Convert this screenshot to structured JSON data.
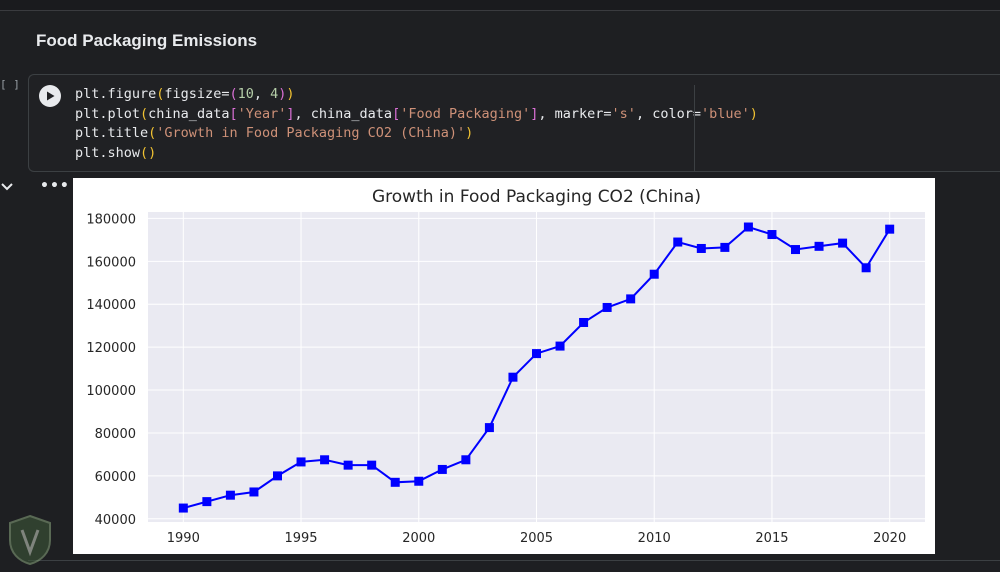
{
  "notebook": {
    "section_title": "Food Packaging Emissions",
    "exec_count": "[ ]",
    "output_menu": "•••"
  },
  "code_lines": [
    [
      {
        "t": "plt.figure",
        "c": "k-fn"
      },
      {
        "t": "(",
        "c": "k-p1"
      },
      {
        "t": "figsize=",
        "c": "k-fn"
      },
      {
        "t": "(",
        "c": "k-p2"
      },
      {
        "t": "10",
        "c": "k-num"
      },
      {
        "t": ", ",
        "c": "k-fn"
      },
      {
        "t": "4",
        "c": "k-num"
      },
      {
        "t": ")",
        "c": "k-p2"
      },
      {
        "t": ")",
        "c": "k-p1"
      }
    ],
    [
      {
        "t": "plt.plot",
        "c": "k-fn"
      },
      {
        "t": "(",
        "c": "k-p1"
      },
      {
        "t": "china_data",
        "c": "k-fn"
      },
      {
        "t": "[",
        "c": "k-p2"
      },
      {
        "t": "'Year'",
        "c": "k-str2"
      },
      {
        "t": "]",
        "c": "k-p2"
      },
      {
        "t": ", china_data",
        "c": "k-fn"
      },
      {
        "t": "[",
        "c": "k-p2"
      },
      {
        "t": "'Food Packaging'",
        "c": "k-str2"
      },
      {
        "t": "]",
        "c": "k-p2"
      },
      {
        "t": ", marker=",
        "c": "k-fn"
      },
      {
        "t": "'s'",
        "c": "k-str2"
      },
      {
        "t": ", color=",
        "c": "k-fn"
      },
      {
        "t": "'blue'",
        "c": "k-str2"
      },
      {
        "t": ")",
        "c": "k-p1"
      }
    ],
    [
      {
        "t": "plt.title",
        "c": "k-fn"
      },
      {
        "t": "(",
        "c": "k-p1"
      },
      {
        "t": "'Growth in Food Packaging CO2 (China)'",
        "c": "k-str2"
      },
      {
        "t": ")",
        "c": "k-p1"
      }
    ],
    [
      {
        "t": "plt.show",
        "c": "k-fn"
      },
      {
        "t": "()",
        "c": "k-p1"
      }
    ]
  ],
  "chart_data": {
    "type": "line",
    "title": "Growth in Food Packaging CO2 (China)",
    "xlabel": "",
    "ylabel": "",
    "x": [
      1990,
      1991,
      1992,
      1993,
      1994,
      1995,
      1996,
      1997,
      1998,
      1999,
      2000,
      2001,
      2002,
      2003,
      2004,
      2005,
      2006,
      2007,
      2008,
      2009,
      2010,
      2011,
      2012,
      2013,
      2014,
      2015,
      2016,
      2017,
      2018,
      2019,
      2020
    ],
    "values": [
      45000,
      48000,
      51000,
      52500,
      60000,
      66500,
      67500,
      65000,
      65000,
      57000,
      57500,
      63000,
      67500,
      82500,
      106000,
      117000,
      120500,
      131500,
      138500,
      142500,
      154000,
      169000,
      166000,
      166500,
      176000,
      172500,
      165500,
      167000,
      168500,
      157000,
      175000
    ],
    "marker": "s",
    "color": "#0000ff",
    "xlim": [
      1988.5,
      2021.5
    ],
    "ylim": [
      38500,
      183000
    ],
    "xticks": [
      1990,
      1995,
      2000,
      2005,
      2010,
      2015,
      2020
    ],
    "yticks": [
      40000,
      60000,
      80000,
      100000,
      120000,
      140000,
      160000,
      180000
    ],
    "grid": true,
    "background": "#eaeaf2"
  }
}
